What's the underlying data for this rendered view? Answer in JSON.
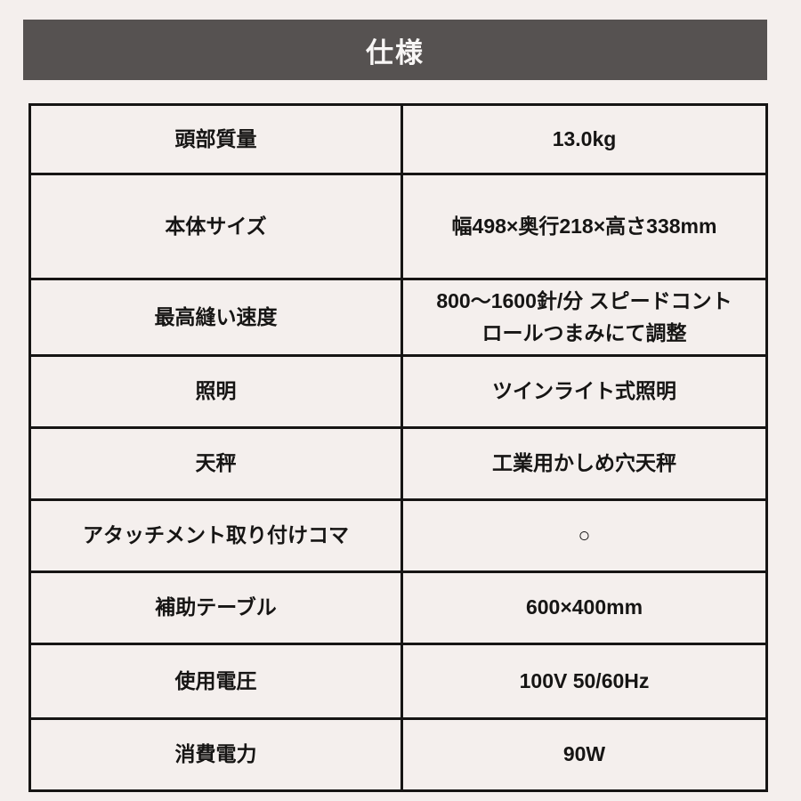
{
  "page": {
    "background_color": "#f4efed",
    "text_color": "#161514",
    "border_color": "#161514"
  },
  "header": {
    "title": "仕様",
    "background_color": "#565251",
    "text_color": "#f8f6f5"
  },
  "spec_table": {
    "columns": [
      "item",
      "value"
    ],
    "rows": [
      {
        "label": "頭部質量",
        "value": "13.0kg"
      },
      {
        "label": "本体サイズ",
        "value": "幅498×奥行218×高さ338mm"
      },
      {
        "label": "最高縫い速度",
        "value": "800〜1600針/分 スピードコント\nロールつまみにて調整"
      },
      {
        "label": "照明",
        "value": "ツインライト式照明"
      },
      {
        "label": "天秤",
        "value": "工業用かしめ穴天秤"
      },
      {
        "label": "アタッチメント取り付けコマ",
        "value": "○"
      },
      {
        "label": "補助テーブル",
        "value": "600×400mm"
      },
      {
        "label": "使用電圧",
        "value": "100V 50/60Hz"
      },
      {
        "label": "消費電力",
        "value": "90W"
      }
    ]
  }
}
